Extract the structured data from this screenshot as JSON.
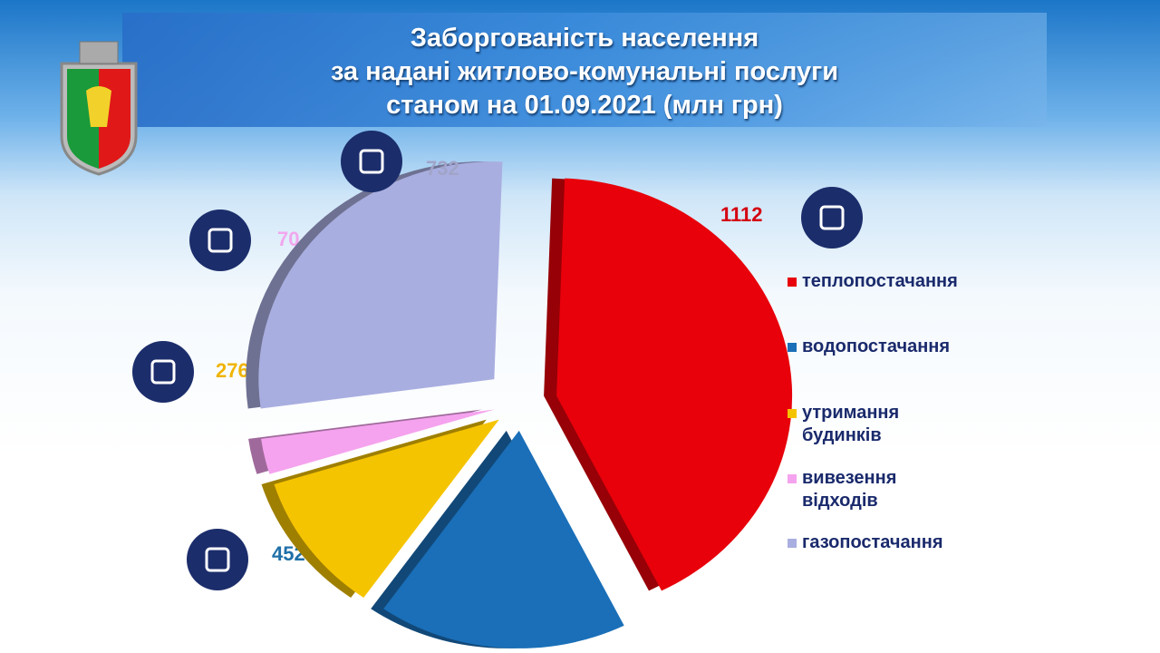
{
  "chart_data": {
    "type": "pie",
    "title": [
      "Заборгованість населення",
      "за надані житлово-комунальні послуги",
      "станом на 01.09.2021 (млн грн)"
    ],
    "categories": [
      "теплопостачання",
      "водопостачання",
      "утримання будинків",
      "вивезення відходів",
      "газопостачання"
    ],
    "values": [
      1112,
      452,
      276,
      70,
      732
    ],
    "colors": [
      "#e8000b",
      "#1a6fb8",
      "#f5c400",
      "#f5a3ee",
      "#a9aee0"
    ],
    "label_colors": [
      "#d40010",
      "#1f6fa8",
      "#f0b400",
      "#f2a6ee",
      "#a0a4c8"
    ]
  }
}
